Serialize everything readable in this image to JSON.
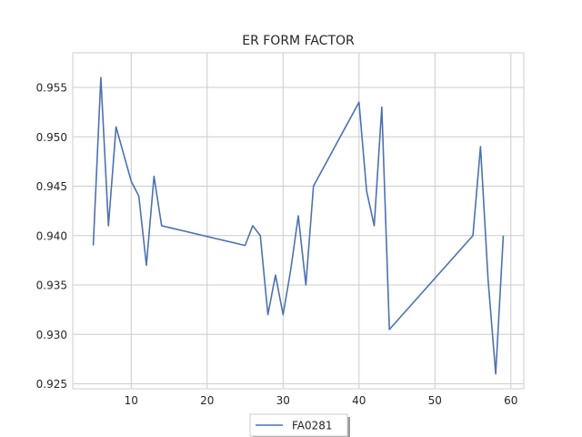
{
  "chart_data": {
    "type": "line",
    "title": "ER FORM FACTOR",
    "xlabel": "",
    "ylabel": "",
    "xlim": [
      2.3,
      61.7
    ],
    "ylim": [
      0.9245,
      0.9585
    ],
    "xticks": [
      10,
      20,
      30,
      40,
      50,
      60
    ],
    "yticks": [
      0.925,
      0.93,
      0.935,
      0.94,
      0.945,
      0.95,
      0.955
    ],
    "xtick_labels": [
      "10",
      "20",
      "30",
      "40",
      "50",
      "60"
    ],
    "ytick_labels": [
      "0.925",
      "0.930",
      "0.935",
      "0.940",
      "0.945",
      "0.950",
      "0.955"
    ],
    "grid": true,
    "legend_position": "bottom-center",
    "series": [
      {
        "name": "FA0281",
        "color": "#4c72b0",
        "x": [
          5,
          6,
          7,
          8,
          10,
          11,
          12,
          13,
          14,
          25,
          26,
          27,
          28,
          29,
          30,
          31,
          32,
          33,
          34,
          40,
          41,
          42,
          43,
          44,
          55,
          56,
          57,
          58,
          59
        ],
        "y": [
          0.939,
          0.956,
          0.941,
          0.951,
          0.9455,
          0.944,
          0.937,
          0.946,
          0.941,
          0.939,
          0.941,
          0.94,
          0.932,
          0.936,
          0.932,
          0.9365,
          0.942,
          0.935,
          0.945,
          0.9535,
          0.9445,
          0.941,
          0.953,
          0.9305,
          0.94,
          0.949,
          0.9355,
          0.926,
          0.94
        ]
      }
    ]
  }
}
